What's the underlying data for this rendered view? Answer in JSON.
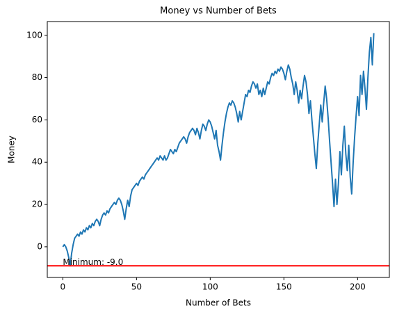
{
  "chart_data": {
    "type": "line",
    "title": "Money vs Number of Bets",
    "xlabel": "Number of Bets",
    "ylabel": "Money",
    "x": [
      0,
      1,
      2,
      3,
      4,
      5,
      6,
      7,
      8,
      9,
      10,
      11,
      12,
      13,
      14,
      15,
      16,
      17,
      18,
      19,
      20,
      21,
      22,
      23,
      24,
      25,
      26,
      27,
      28,
      29,
      30,
      31,
      32,
      33,
      34,
      35,
      36,
      37,
      38,
      39,
      40,
      41,
      42,
      43,
      44,
      45,
      46,
      47,
      48,
      49,
      50,
      51,
      52,
      53,
      54,
      55,
      56,
      57,
      58,
      59,
      60,
      61,
      62,
      63,
      64,
      65,
      66,
      67,
      68,
      69,
      70,
      71,
      72,
      73,
      74,
      75,
      76,
      77,
      78,
      79,
      80,
      81,
      82,
      83,
      84,
      85,
      86,
      87,
      88,
      89,
      90,
      91,
      92,
      93,
      94,
      95,
      96,
      97,
      98,
      99,
      100,
      101,
      102,
      103,
      104,
      105,
      106,
      107,
      108,
      109,
      110,
      111,
      112,
      113,
      114,
      115,
      116,
      117,
      118,
      119,
      120,
      121,
      122,
      123,
      124,
      125,
      126,
      127,
      128,
      129,
      130,
      131,
      132,
      133,
      134,
      135,
      136,
      137,
      138,
      139,
      140,
      141,
      142,
      143,
      144,
      145,
      146,
      147,
      148,
      149,
      150,
      151,
      152,
      153,
      154,
      155,
      156,
      157,
      158,
      159,
      160,
      161,
      162,
      163,
      164,
      165,
      166,
      167,
      168,
      169,
      170,
      171,
      172,
      173,
      174,
      175,
      176,
      177,
      178,
      179,
      180,
      181,
      182,
      183,
      184,
      185,
      186,
      187,
      188,
      189,
      190,
      191,
      192,
      193,
      194,
      195,
      196,
      197,
      198,
      199,
      200,
      201,
      202,
      203,
      204,
      205,
      206,
      207,
      208,
      209,
      210,
      211
    ],
    "values": [
      0,
      1,
      0,
      -2,
      -5,
      -9,
      -3,
      1,
      4,
      5,
      6,
      5,
      7,
      6,
      8,
      7,
      9,
      8,
      10,
      9,
      11,
      10,
      12,
      13,
      12,
      10,
      13,
      15,
      16,
      15,
      17,
      16,
      18,
      19,
      20,
      21,
      20,
      22,
      23,
      22,
      20,
      17,
      13,
      18,
      22,
      19,
      24,
      27,
      28,
      29,
      30,
      29,
      31,
      32,
      33,
      32,
      34,
      35,
      36,
      37,
      38,
      39,
      40,
      41,
      42,
      41,
      43,
      42,
      41,
      43,
      41,
      42,
      44,
      46,
      45,
      44,
      46,
      45,
      47,
      49,
      50,
      51,
      52,
      51,
      49,
      52,
      54,
      55,
      56,
      55,
      53,
      56,
      54,
      51,
      55,
      58,
      57,
      55,
      58,
      60,
      59,
      57,
      54,
      51,
      55,
      48,
      45,
      41,
      48,
      54,
      59,
      63,
      66,
      68,
      67,
      69,
      68,
      66,
      63,
      59,
      64,
      60,
      64,
      68,
      72,
      71,
      74,
      73,
      76,
      78,
      77,
      75,
      77,
      72,
      74,
      71,
      75,
      72,
      75,
      78,
      77,
      80,
      82,
      81,
      83,
      82,
      84,
      83,
      85,
      84,
      82,
      79,
      83,
      86,
      84,
      80,
      77,
      72,
      78,
      74,
      68,
      74,
      70,
      76,
      81,
      78,
      72,
      63,
      69,
      60,
      52,
      44,
      37,
      49,
      58,
      67,
      59,
      68,
      76,
      70,
      61,
      50,
      40,
      30,
      19,
      32,
      20,
      30,
      45,
      34,
      48,
      57,
      44,
      36,
      48,
      33,
      25,
      40,
      52,
      62,
      71,
      62,
      81,
      72,
      83,
      75,
      65,
      80,
      92,
      99,
      86,
      101
    ],
    "color": "#1f77b4",
    "hline": {
      "value": -9,
      "color": "#ff0000"
    },
    "annotation": "Minimum: -9.0",
    "xlim": [
      -10.55,
      221.55
    ],
    "ylim": [
      -14.5,
      106.5
    ],
    "xticks": [
      0,
      50,
      100,
      150,
      200
    ],
    "yticks": [
      0,
      20,
      40,
      60,
      80,
      100
    ]
  }
}
